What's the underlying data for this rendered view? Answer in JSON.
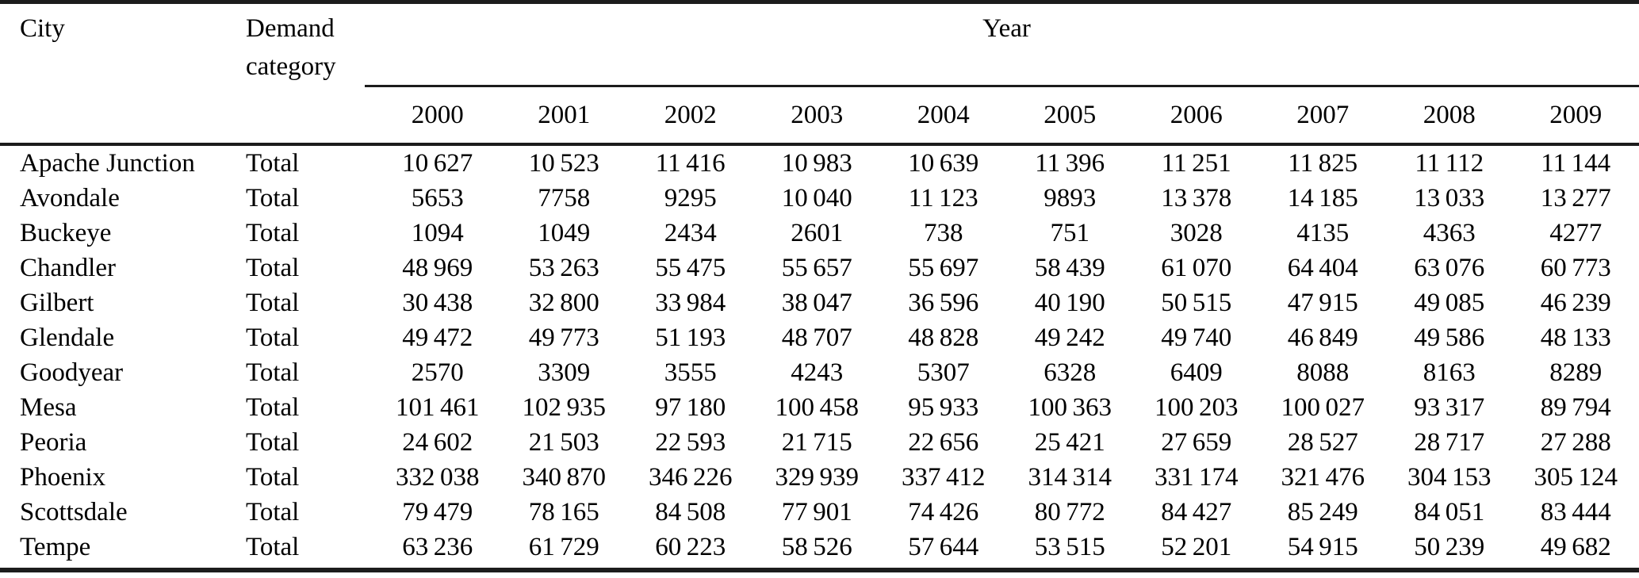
{
  "table": {
    "headers": {
      "city": "City",
      "demand_category": "Demand category",
      "year_group": "Year"
    },
    "years": [
      "2000",
      "2001",
      "2002",
      "2003",
      "2004",
      "2005",
      "2006",
      "2007",
      "2008",
      "2009"
    ],
    "rows": [
      {
        "city": "Apache Junction",
        "category": "Total",
        "values": [
          "10 627",
          "10 523",
          "11 416",
          "10 983",
          "10 639",
          "11 396",
          "11 251",
          "11 825",
          "11 112",
          "11 144"
        ]
      },
      {
        "city": "Avondale",
        "category": "Total",
        "values": [
          "5653",
          "7758",
          "9295",
          "10 040",
          "11 123",
          "9893",
          "13 378",
          "14 185",
          "13 033",
          "13 277"
        ]
      },
      {
        "city": "Buckeye",
        "category": "Total",
        "values": [
          "1094",
          "1049",
          "2434",
          "2601",
          "738",
          "751",
          "3028",
          "4135",
          "4363",
          "4277"
        ]
      },
      {
        "city": "Chandler",
        "category": "Total",
        "values": [
          "48 969",
          "53 263",
          "55 475",
          "55 657",
          "55 697",
          "58 439",
          "61 070",
          "64 404",
          "63 076",
          "60 773"
        ]
      },
      {
        "city": "Gilbert",
        "category": "Total",
        "values": [
          "30 438",
          "32 800",
          "33 984",
          "38 047",
          "36 596",
          "40 190",
          "50 515",
          "47 915",
          "49 085",
          "46 239"
        ]
      },
      {
        "city": "Glendale",
        "category": "Total",
        "values": [
          "49 472",
          "49 773",
          "51 193",
          "48 707",
          "48 828",
          "49 242",
          "49 740",
          "46 849",
          "49 586",
          "48 133"
        ]
      },
      {
        "city": "Goodyear",
        "category": "Total",
        "values": [
          "2570",
          "3309",
          "3555",
          "4243",
          "5307",
          "6328",
          "6409",
          "8088",
          "8163",
          "8289"
        ]
      },
      {
        "city": "Mesa",
        "category": "Total",
        "values": [
          "101 461",
          "102 935",
          "97 180",
          "100 458",
          "95 933",
          "100 363",
          "100 203",
          "100 027",
          "93 317",
          "89 794"
        ]
      },
      {
        "city": "Peoria",
        "category": "Total",
        "values": [
          "24 602",
          "21 503",
          "22 593",
          "21 715",
          "22 656",
          "25 421",
          "27 659",
          "28 527",
          "28 717",
          "27 288"
        ]
      },
      {
        "city": "Phoenix",
        "category": "Total",
        "values": [
          "332 038",
          "340 870",
          "346 226",
          "329 939",
          "337 412",
          "314 314",
          "331 174",
          "321 476",
          "304 153",
          "305 124"
        ]
      },
      {
        "city": "Scottsdale",
        "category": "Total",
        "values": [
          "79 479",
          "78 165",
          "84 508",
          "77 901",
          "74 426",
          "80 772",
          "84 427",
          "85 249",
          "84 051",
          "83 444"
        ]
      },
      {
        "city": "Tempe",
        "category": "Total",
        "values": [
          "63 236",
          "61 729",
          "60 223",
          "58 526",
          "57 644",
          "53 515",
          "52 201",
          "54 915",
          "50 239",
          "49 682"
        ]
      }
    ]
  }
}
